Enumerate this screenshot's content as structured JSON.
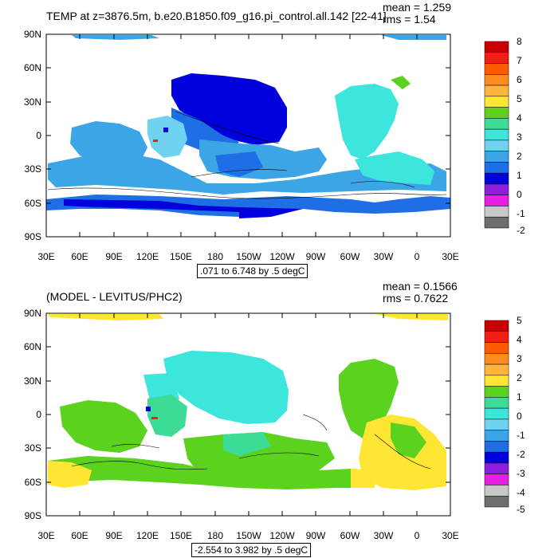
{
  "top": {
    "title": "TEMP at z=3876.5m, b.e20.B1850.f09_g16.pi_control.all.142 [22-41]",
    "mean": "mean = 1.259",
    "rms": "rms = 1.54",
    "range": ".071 to 6.748 by .5 degC",
    "colorbar_labels": [
      "8",
      "7",
      "6",
      "5",
      "4",
      "3",
      "2",
      "1",
      "0",
      "-1",
      "-2"
    ]
  },
  "bottom": {
    "title": "(MODEL - LEVITUS/PHC2)",
    "mean": "mean = 0.1566",
    "rms": "rms = 0.7622",
    "range": "-2.554 to 3.982 by .5 degC",
    "colorbar_labels": [
      "5",
      "4",
      "3",
      "2",
      "1",
      "0",
      "-1",
      "-2",
      "-3",
      "-4",
      "-5"
    ]
  },
  "axes": {
    "y_labels": [
      "90N",
      "60N",
      "30N",
      "0",
      "30S",
      "60S",
      "90S"
    ],
    "x_labels": [
      "30E",
      "60E",
      "90E",
      "120E",
      "150E",
      "180",
      "150W",
      "120W",
      "90W",
      "60W",
      "30W",
      "0",
      "30E"
    ]
  },
  "colors": {
    "top_colorbar": [
      "#c80000",
      "#f01e14",
      "#ff5a00",
      "#ff8c1e",
      "#ffb43c",
      "#ffe632",
      "#5ad21e",
      "#3cdc96",
      "#3ce6dc",
      "#6ed2f0",
      "#3ca5e6",
      "#1e6ee6",
      "#0000dc",
      "#8c1edc",
      "#e61ee6",
      "#c8c8c8",
      "#6e6e6e"
    ],
    "bottom_colorbar": [
      "#c80000",
      "#f01e14",
      "#ff5a00",
      "#ff8c1e",
      "#ffb43c",
      "#ffe632",
      "#5ad21e",
      "#3cdc96",
      "#3ce6dc",
      "#6ed2f0",
      "#3ca5e6",
      "#1e6ee6",
      "#0000dc",
      "#8c1edc",
      "#e61ee6",
      "#c8c8c8",
      "#6e6e6e"
    ]
  }
}
